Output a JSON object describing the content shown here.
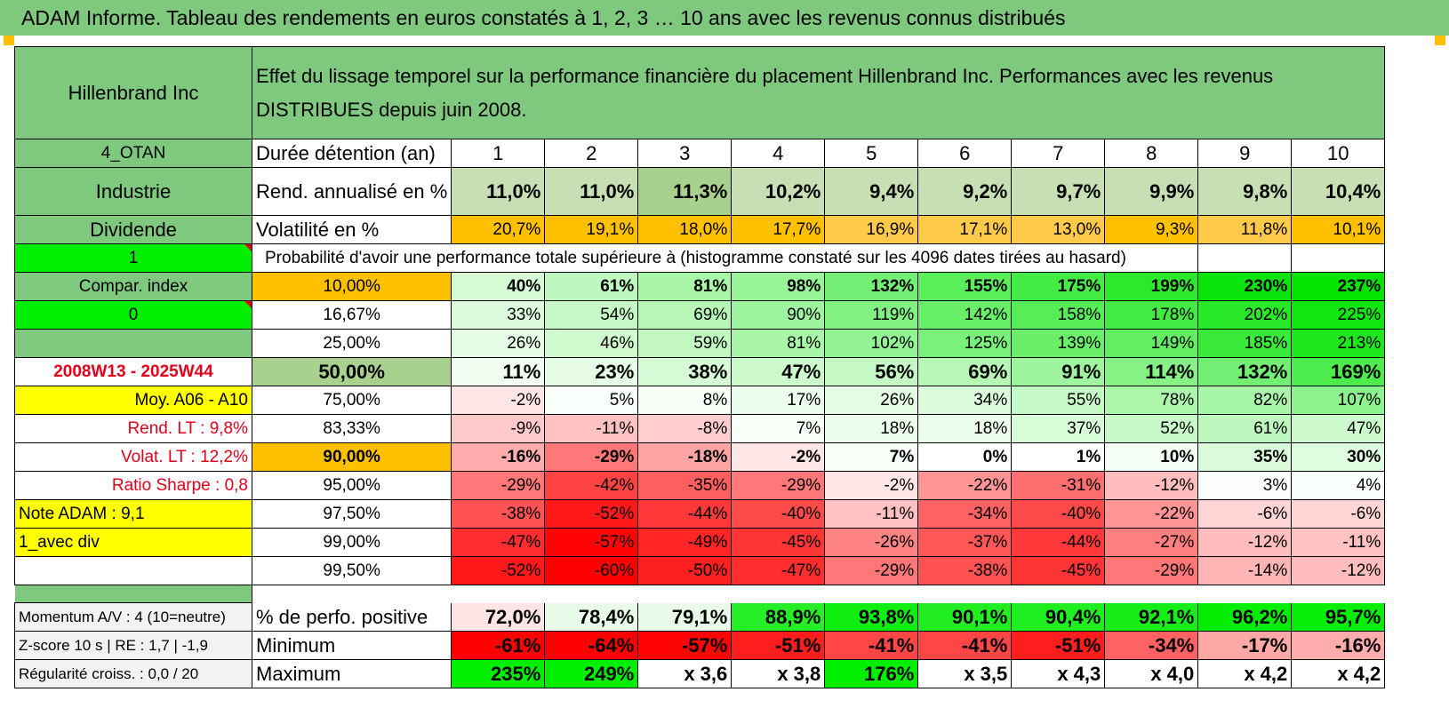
{
  "title": "ADAM Informe. Tableau des rendements en euros constatés à 1, 2, 3 … 10 ans avec les revenus connus distribués",
  "colors": {
    "header_green": "#7fc97f",
    "bright_green": "#00ee00",
    "yellow": "#ffff00",
    "orange": "#ffc000",
    "red_text": "#e3001b"
  },
  "header": {
    "company": "Hillenbrand Inc",
    "description": "Effet du lissage temporel sur la performance financière du placement Hillenbrand Inc. Performances avec les revenus DISTRIBUES depuis juin 2008."
  },
  "left": {
    "code": "4_OTAN",
    "sector": "Industrie",
    "income_type": "Dividende",
    "flag1": "1",
    "compar_index": "Compar. index",
    "flag0": "0",
    "period": "2008W13 - 2025W44",
    "moy": "Moy. A06 - A10",
    "rend_lt": "Rend. LT :   9,8%",
    "volat_lt": "Volat. LT :   12,2%",
    "sharpe": "Ratio Sharpe :    0,8",
    "note": "Note ADAM : 9,1",
    "div_mode": "1_avec div",
    "momentum": "Momentum A/V : 4 (10=neutre)",
    "zscore": "Z-score 10 s | RE : 1,7 | -1,9",
    "regularite": "Régularité croiss. : 0,0 / 20"
  },
  "stats": {
    "duration_label": "Durée détention (an)",
    "years": [
      "1",
      "2",
      "3",
      "4",
      "5",
      "6",
      "7",
      "8",
      "9",
      "10"
    ],
    "rend_label": "Rend. annualisé en %",
    "rend": [
      "11,0%",
      "11,0%",
      "11,3%",
      "10,2%",
      "9,4%",
      "9,2%",
      "9,7%",
      "9,9%",
      "9,8%",
      "10,4%"
    ],
    "vol_label": "Volatilité en %",
    "vol": [
      "20,7%",
      "19,1%",
      "18,0%",
      "17,7%",
      "16,9%",
      "17,1%",
      "13,0%",
      "9,3%",
      "11,8%",
      "10,1%"
    ]
  },
  "probability_header": "Probabilité d'avoir une performance totale supérieure à (histogramme constaté sur les 4096 dates tirées au hasard)",
  "probability_rows": [
    {
      "p": "10,00%",
      "v": [
        "40%",
        "61%",
        "81%",
        "98%",
        "132%",
        "155%",
        "175%",
        "199%",
        "230%",
        "237%"
      ]
    },
    {
      "p": "16,67%",
      "v": [
        "33%",
        "54%",
        "69%",
        "90%",
        "119%",
        "142%",
        "158%",
        "178%",
        "202%",
        "225%"
      ]
    },
    {
      "p": "25,00%",
      "v": [
        "26%",
        "46%",
        "59%",
        "81%",
        "102%",
        "125%",
        "139%",
        "149%",
        "185%",
        "213%"
      ]
    },
    {
      "p": "50,00%",
      "v": [
        "11%",
        "23%",
        "38%",
        "47%",
        "56%",
        "69%",
        "91%",
        "114%",
        "132%",
        "169%"
      ]
    },
    {
      "p": "75,00%",
      "v": [
        "-2%",
        "5%",
        "8%",
        "17%",
        "26%",
        "34%",
        "55%",
        "78%",
        "82%",
        "107%"
      ]
    },
    {
      "p": "83,33%",
      "v": [
        "-9%",
        "-11%",
        "-8%",
        "7%",
        "18%",
        "18%",
        "37%",
        "52%",
        "61%",
        "47%"
      ]
    },
    {
      "p": "90,00%",
      "v": [
        "-16%",
        "-29%",
        "-18%",
        "-2%",
        "7%",
        "0%",
        "1%",
        "10%",
        "35%",
        "30%"
      ]
    },
    {
      "p": "95,00%",
      "v": [
        "-29%",
        "-42%",
        "-35%",
        "-29%",
        "-2%",
        "-22%",
        "-31%",
        "-12%",
        "3%",
        "4%"
      ]
    },
    {
      "p": "97,50%",
      "v": [
        "-38%",
        "-52%",
        "-44%",
        "-40%",
        "-11%",
        "-34%",
        "-40%",
        "-22%",
        "-6%",
        "-6%"
      ]
    },
    {
      "p": "99,00%",
      "v": [
        "-47%",
        "-57%",
        "-49%",
        "-45%",
        "-26%",
        "-37%",
        "-44%",
        "-27%",
        "-12%",
        "-11%"
      ]
    },
    {
      "p": "99,50%",
      "v": [
        "-52%",
        "-60%",
        "-50%",
        "-47%",
        "-29%",
        "-38%",
        "-45%",
        "-29%",
        "-14%",
        "-12%"
      ]
    }
  ],
  "summary": {
    "positive_label": "% de perfo. positive",
    "positive": [
      "72,0%",
      "78,4%",
      "79,1%",
      "88,9%",
      "93,8%",
      "90,1%",
      "90,4%",
      "92,1%",
      "96,2%",
      "95,7%"
    ],
    "min_label": "Minimum",
    "min": [
      "-61%",
      "-64%",
      "-57%",
      "-51%",
      "-41%",
      "-41%",
      "-51%",
      "-34%",
      "-17%",
      "-16%"
    ],
    "max_label": "Maximum",
    "max": [
      "235%",
      "249%",
      "x 3,6",
      "x 3,8",
      "176%",
      "x 3,5",
      "x 4,3",
      "x 4,0",
      "x 4,2",
      "x 4,2"
    ]
  }
}
